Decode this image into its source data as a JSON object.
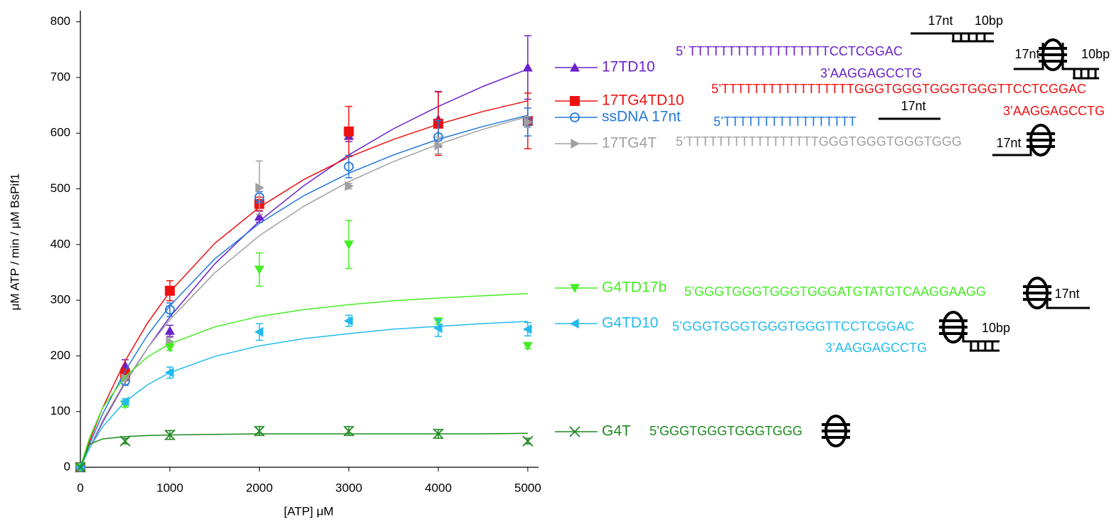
{
  "chart_data": {
    "type": "scatter",
    "xlabel": "[ATP] μM",
    "ylabel": "μM ATP / min / μM BsPif1",
    "x": [
      0,
      500,
      1000,
      2000,
      3000,
      4000,
      5000
    ],
    "fit_x": [
      0,
      100,
      250,
      500,
      750,
      1000,
      1500,
      2000,
      2500,
      3000,
      3500,
      4000,
      4500,
      5000
    ],
    "xlim": [
      0,
      5120
    ],
    "xticks": [
      0,
      1000,
      2000,
      3000,
      4000,
      5000
    ],
    "ylim": [
      0,
      820
    ],
    "yticks": [
      0,
      100,
      200,
      300,
      400,
      500,
      600,
      700,
      800
    ],
    "grid": false,
    "series": [
      {
        "name": "17TD10",
        "color": "#6a22cc",
        "marker": "triangle-up",
        "values": [
          0,
          183,
          245,
          450,
          595,
          625,
          718
        ],
        "errors": [
          0,
          10,
          10,
          10,
          10,
          50,
          57
        ],
        "fit": [
          0,
          34,
          81,
          152,
          214,
          270,
          365,
          442,
          506,
          561,
          608,
          648,
          684,
          715
        ],
        "sequence": [
          "5’ TTTTTTTTTTTTTTTTTTCCTCGGAC",
          "3’AAGGAGCCTG"
        ],
        "diagram_labels": [
          "17nt",
          "10bp"
        ]
      },
      {
        "name": "17TG4TD10",
        "color": "#ee1111",
        "marker": "square",
        "values": [
          0,
          167,
          317,
          473,
          603,
          617,
          622
        ],
        "errors": [
          0,
          10,
          18,
          12,
          45,
          57,
          50
        ],
        "fit": [
          0,
          46,
          107,
          191,
          259,
          315,
          402,
          467,
          517,
          557,
          589,
          616,
          639,
          658
        ],
        "sequence": [
          "5’TTTTTTTTTTTTTTTTTGGGTGGGTGGGTGGGTTCCTCGGAC",
          "3’AAGGAGCCTG"
        ],
        "diagram_labels": [
          "17nt",
          "10bp"
        ]
      },
      {
        "name": "ssDNA 17nt",
        "color": "#2277dd",
        "marker": "circle-open",
        "values": [
          0,
          155,
          283,
          485,
          540,
          593,
          620
        ],
        "errors": [
          0,
          8,
          12,
          10,
          20,
          30,
          25
        ],
        "fit": [
          0,
          41,
          96,
          173,
          237,
          290,
          374,
          438,
          488,
          528,
          561,
          589,
          612,
          632
        ],
        "sequence": [
          "5’TTTTTTTTTTTTTTTTT"
        ],
        "diagram_labels": [
          "17nt"
        ]
      },
      {
        "name": "17TG4T",
        "color": "#a0a0a0",
        "marker": "triangle-right",
        "values": [
          0,
          160,
          225,
          502,
          505,
          578,
          620
        ],
        "errors": [
          0,
          5,
          8,
          48,
          5,
          15,
          10
        ],
        "fit": [
          0,
          35,
          84,
          154,
          214,
          265,
          349,
          416,
          469,
          513,
          549,
          580,
          607,
          630
        ],
        "sequence": [
          "5’TTTTTTTTTTTTTTTTTGGGTGGGTGGGTGGG"
        ],
        "diagram_labels": [
          "17nt"
        ]
      },
      {
        "name": "G4TD17b",
        "color": "#44ee22",
        "marker": "triangle-down",
        "values": [
          0,
          113,
          215,
          355,
          400,
          262,
          218
        ],
        "errors": [
          0,
          5,
          5,
          30,
          43,
          5,
          5
        ],
        "fit": [
          0,
          52,
          107,
          163,
          198,
          222,
          252,
          271,
          283,
          292,
          299,
          304,
          308,
          312
        ],
        "sequence": [
          "5’GGGTGGGTGGGTGGGATGTATGTCAAGGAAGG"
        ],
        "diagram_labels": [
          "17nt"
        ]
      },
      {
        "name": "G4TD10",
        "color": "#22bbee",
        "marker": "triangle-left",
        "values": [
          0,
          118,
          170,
          243,
          263,
          250,
          248
        ],
        "errors": [
          0,
          5,
          10,
          15,
          10,
          15,
          12
        ],
        "fit": [
          0,
          34,
          73,
          118,
          148,
          170,
          199,
          218,
          231,
          240,
          248,
          253,
          258,
          262
        ],
        "sequence": [
          "5’GGGTGGGTGGGTGGGTTCCTCGGAC",
          "3’AAGGAGCCTG"
        ],
        "diagram_labels": [
          "10bp"
        ]
      },
      {
        "name": "G4T",
        "color": "#1e8a1e",
        "marker": "x",
        "values": [
          0,
          47,
          58,
          65,
          65,
          60,
          47
        ],
        "errors": [
          0,
          5,
          8,
          8,
          8,
          8,
          5
        ],
        "fit": [
          0,
          41,
          51,
          55,
          57,
          58,
          59,
          60,
          60,
          60,
          60,
          60,
          60,
          61
        ],
        "sequence": [
          "5’GGGTGGGTGGGTGGG"
        ],
        "diagram_labels": []
      }
    ]
  }
}
